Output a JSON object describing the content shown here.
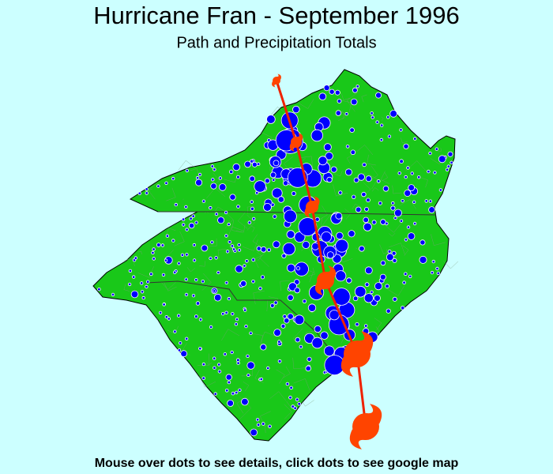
{
  "header": {
    "title": "Hurricane Fran - September 1996",
    "subtitle": "Path and Precipitation Totals"
  },
  "footer": {
    "instructions": "Mouse over dots to see details, click dots to see google map"
  }
}
